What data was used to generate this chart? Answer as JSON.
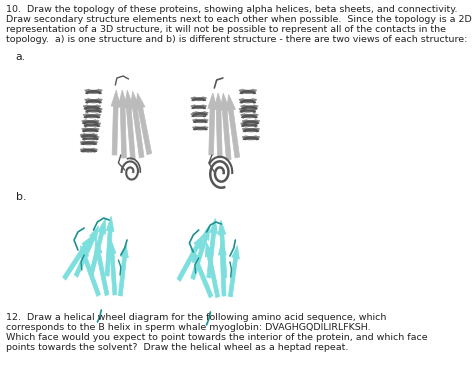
{
  "background_color": "#ffffff",
  "title_line1": "10.  Draw the topology of these proteins, showing alpha helices, beta sheets, and connectivity.",
  "title_line2": "Draw secondary structure elements next to each other when possible.  Since the topology is a 2D",
  "title_line3": "representation of a 3D structure, it will not be possible to represent all of the contacts in the",
  "title_line4": "topology.  a) is one structure and b) is different structure - there are two views of each structure:",
  "label_a": "a.",
  "label_b": "b.",
  "footer_line1": "12.  Draw a helical wheel diagram for the following amino acid sequence, which",
  "footer_line2": "corresponds to the B helix in sperm whale myoglobin: DVAGHGQDILIRLFKSH.",
  "footer_line3": "Which face would you expect to point towards the interior of the protein, and which face",
  "footer_line4": "points towards the solvent?  Draw the helical wheel as a heptad repeat.",
  "gray": "#888888",
  "gray_light": "#bbbbbb",
  "gray_dark": "#555555",
  "cyan": "#3cc8c8",
  "cyan_light": "#7ddede",
  "cyan_dark": "#1a9090",
  "text_color": "#222222",
  "font_size": 6.8
}
